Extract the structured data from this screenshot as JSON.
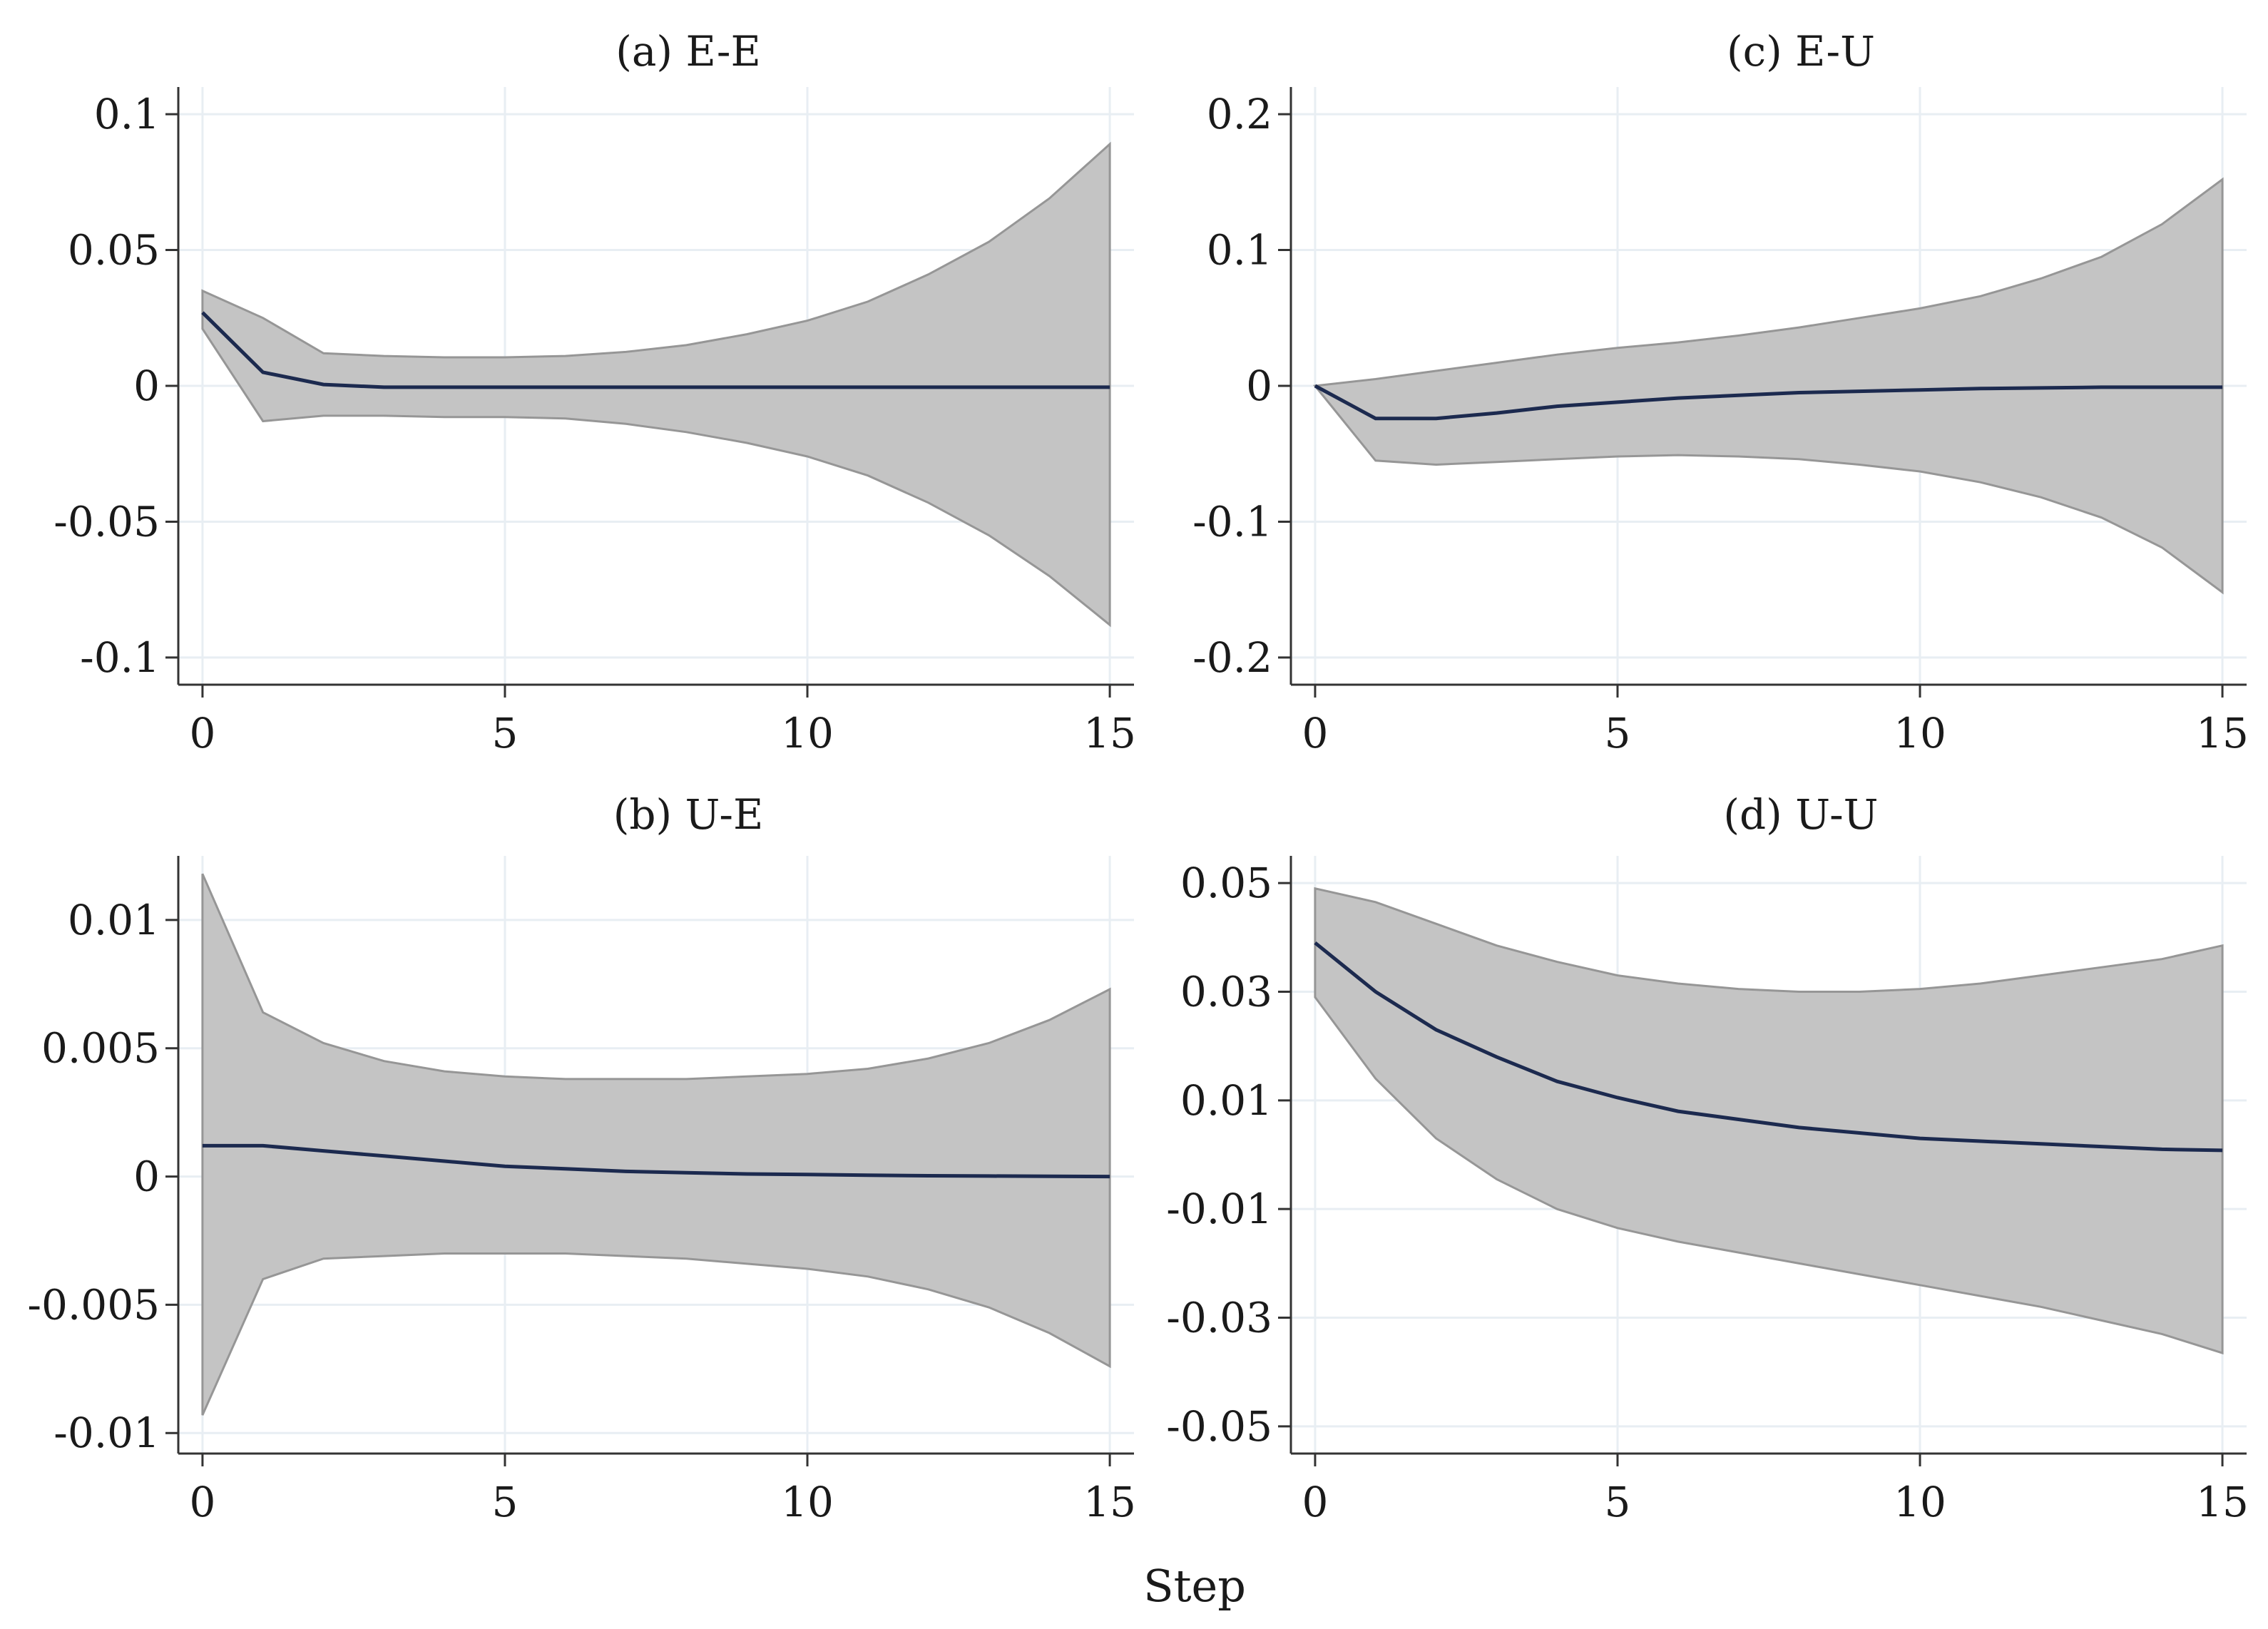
{
  "figure": {
    "xlabel": "Step"
  },
  "chart_data": [
    {
      "type": "area",
      "id": "a",
      "title": "(a) E-E",
      "x": [
        0,
        1,
        2,
        3,
        4,
        5,
        6,
        7,
        8,
        9,
        10,
        11,
        12,
        13,
        14,
        15
      ],
      "estimate": [
        0.027,
        0.005,
        0.0005,
        -0.0005,
        -0.0005,
        -0.0005,
        -0.0005,
        -0.0005,
        -0.0005,
        -0.0005,
        -0.0005,
        -0.0005,
        -0.0005,
        -0.0005,
        -0.0005,
        -0.0005
      ],
      "upper": [
        0.035,
        0.025,
        0.012,
        0.011,
        0.0105,
        0.0105,
        0.011,
        0.0125,
        0.015,
        0.019,
        0.024,
        0.031,
        0.041,
        0.053,
        0.069,
        0.089
      ],
      "lower": [
        0.021,
        -0.013,
        -0.011,
        -0.011,
        -0.0115,
        -0.0115,
        -0.012,
        -0.014,
        -0.017,
        -0.021,
        -0.026,
        -0.033,
        -0.043,
        -0.055,
        -0.07,
        -0.088
      ],
      "xlim": [
        -0.4,
        15.4
      ],
      "ylim": [
        -0.11,
        0.11
      ],
      "xticks": [
        0,
        5,
        10,
        15
      ],
      "xtick_labels": [
        "0",
        "5",
        "10",
        "15"
      ],
      "yticks": [
        0.1,
        0.05,
        0,
        -0.05,
        -0.1
      ],
      "ytick_labels": [
        "0.1",
        "0.05",
        "0",
        "-0.05",
        "-0.1"
      ]
    },
    {
      "type": "area",
      "id": "c",
      "title": "(c) E-U",
      "x": [
        0,
        1,
        2,
        3,
        4,
        5,
        6,
        7,
        8,
        9,
        10,
        11,
        12,
        13,
        14,
        15
      ],
      "estimate": [
        0,
        -0.024,
        -0.024,
        -0.02,
        -0.015,
        -0.012,
        -0.009,
        -0.007,
        -0.005,
        -0.004,
        -0.003,
        -0.002,
        -0.0015,
        -0.001,
        -0.001,
        -0.001
      ],
      "upper": [
        0,
        0.005,
        0.011,
        0.017,
        0.023,
        0.028,
        0.032,
        0.037,
        0.043,
        0.05,
        0.057,
        0.066,
        0.079,
        0.095,
        0.119,
        0.152
      ],
      "lower": [
        0,
        -0.055,
        -0.058,
        -0.056,
        -0.054,
        -0.052,
        -0.051,
        -0.052,
        -0.054,
        -0.058,
        -0.063,
        -0.071,
        -0.082,
        -0.097,
        -0.119,
        -0.152
      ],
      "xlim": [
        -0.4,
        15.4
      ],
      "ylim": [
        -0.22,
        0.22
      ],
      "xticks": [
        0,
        5,
        10,
        15
      ],
      "xtick_labels": [
        "0",
        "5",
        "10",
        "15"
      ],
      "yticks": [
        0.2,
        0.1,
        0,
        -0.1,
        -0.2
      ],
      "ytick_labels": [
        "0.2",
        "0.1",
        "0",
        "-0.1",
        "-0.2"
      ]
    },
    {
      "type": "area",
      "id": "b",
      "title": "(b) U-E",
      "x": [
        0,
        1,
        2,
        3,
        4,
        5,
        6,
        7,
        8,
        9,
        10,
        11,
        12,
        13,
        14,
        15
      ],
      "estimate": [
        0.0012,
        0.0012,
        0.001,
        0.0008,
        0.0006,
        0.0004,
        0.0003,
        0.0002,
        0.00015,
        0.0001,
        8e-05,
        5e-05,
        3e-05,
        2e-05,
        1e-05,
        0
      ],
      "upper": [
        0.0118,
        0.0064,
        0.0052,
        0.0045,
        0.0041,
        0.0039,
        0.0038,
        0.0038,
        0.0038,
        0.0039,
        0.004,
        0.0042,
        0.0046,
        0.0052,
        0.0061,
        0.0073
      ],
      "lower": [
        -0.0093,
        -0.004,
        -0.0032,
        -0.0031,
        -0.003,
        -0.003,
        -0.003,
        -0.0031,
        -0.0032,
        -0.0034,
        -0.0036,
        -0.0039,
        -0.0044,
        -0.0051,
        -0.0061,
        -0.0074
      ],
      "xlim": [
        -0.4,
        15.4
      ],
      "ylim": [
        -0.0108,
        0.0125
      ],
      "xticks": [
        0,
        5,
        10,
        15
      ],
      "xtick_labels": [
        "0",
        "5",
        "10",
        "15"
      ],
      "yticks": [
        0.01,
        0.005,
        0,
        -0.005,
        -0.01
      ],
      "ytick_labels": [
        "0.01",
        "0.005",
        "0",
        "-0.005",
        "-0.01"
      ]
    },
    {
      "type": "area",
      "id": "d",
      "title": "(d) U-U",
      "x": [
        0,
        1,
        2,
        3,
        4,
        5,
        6,
        7,
        8,
        9,
        10,
        11,
        12,
        13,
        14,
        15
      ],
      "estimate": [
        0.039,
        0.03,
        0.023,
        0.018,
        0.0135,
        0.0105,
        0.008,
        0.0065,
        0.005,
        0.004,
        0.003,
        0.0025,
        0.002,
        0.0015,
        0.001,
        0.0008
      ],
      "upper": [
        0.049,
        0.0465,
        0.0425,
        0.0385,
        0.0355,
        0.033,
        0.0315,
        0.0305,
        0.03,
        0.03,
        0.0305,
        0.0315,
        0.033,
        0.0345,
        0.036,
        0.0385
      ],
      "lower": [
        0.029,
        0.014,
        0.003,
        -0.0045,
        -0.01,
        -0.0135,
        -0.016,
        -0.018,
        -0.02,
        -0.022,
        -0.024,
        -0.026,
        -0.028,
        -0.0305,
        -0.033,
        -0.0365
      ],
      "xlim": [
        -0.4,
        15.4
      ],
      "ylim": [
        -0.055,
        0.055
      ],
      "xticks": [
        0,
        5,
        10,
        15
      ],
      "xtick_labels": [
        "0",
        "5",
        "10",
        "15"
      ],
      "yticks": [
        0.05,
        0.03,
        0.01,
        -0.01,
        -0.03,
        -0.05
      ],
      "ytick_labels": [
        "0.05",
        "0.03",
        "0.01",
        "-0.01",
        "-0.03",
        "-0.05"
      ]
    }
  ]
}
